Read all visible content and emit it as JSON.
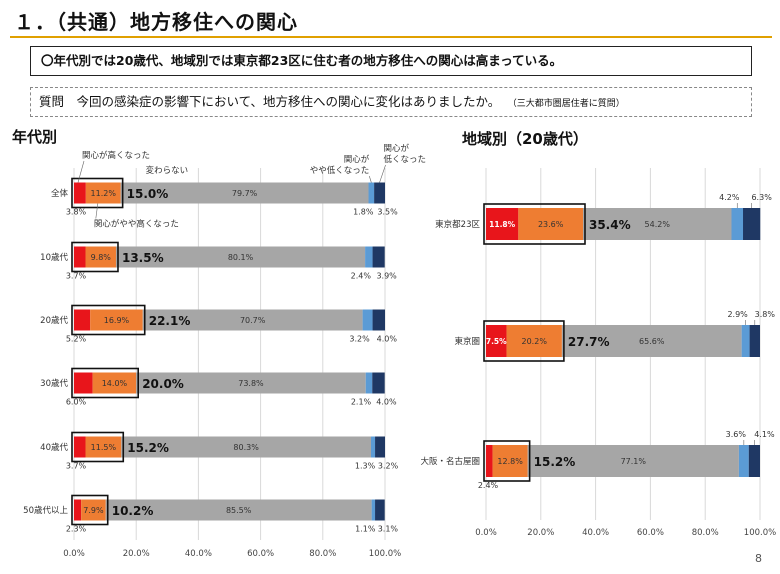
{
  "title": "１．（共通）地方移住への関心",
  "headline": "〇年代別では20歳代、地域別では東京都23区に住む者の地方移住への関心は高まっている。",
  "question": {
    "text": "質問　今回の感染症の影響下において、地方移住への関心に変化はありましたか。",
    "note": "（三大都市圏居住者に質問）"
  },
  "page_number": "8",
  "colors": {
    "high": "#e8151b",
    "somewhat_high": "#ee7d32",
    "unchanged": "#a6a6a6",
    "somewhat_low": "#5b9bd5",
    "low": "#1f3864"
  },
  "chart_data": [
    {
      "type": "bar",
      "orientation": "horizontal",
      "stacked": true,
      "title": "年代別",
      "categories": [
        "全体",
        "10歳代",
        "20歳代",
        "30歳代",
        "40歳代",
        "50歳代以上"
      ],
      "series": [
        {
          "name": "関心が高くなった",
          "values": [
            3.8,
            3.7,
            5.2,
            6.0,
            3.7,
            2.3
          ]
        },
        {
          "name": "関心がやや高くなった",
          "values": [
            11.2,
            9.8,
            16.9,
            14.0,
            11.5,
            7.9
          ]
        },
        {
          "name": "変わらない",
          "values": [
            79.7,
            80.1,
            70.7,
            73.8,
            80.3,
            85.5
          ]
        },
        {
          "name": "関心がやや低くなった",
          "values": [
            1.8,
            2.4,
            3.2,
            2.1,
            1.3,
            1.1
          ]
        },
        {
          "name": "関心が低くなった",
          "values": [
            3.5,
            3.9,
            4.0,
            4.0,
            3.2,
            3.1
          ]
        }
      ],
      "combined_labels": [
        "15.0%",
        "13.5%",
        "22.1%",
        "20.0%",
        "15.2%",
        "10.2%"
      ],
      "label_texts": {
        "high": [
          "3.8%",
          "3.7%",
          "5.2%",
          "6.0%",
          "3.7%",
          "2.3%"
        ],
        "somewhat_high": [
          "11.2%",
          "9.8%",
          "16.9%",
          "14.0%",
          "11.5%",
          "7.9%"
        ],
        "unchanged": [
          "79.7%",
          "80.1%",
          "70.7%",
          "73.8%",
          "80.3%",
          "85.5%"
        ],
        "somewhat_low": [
          "1.8%",
          "2.4%",
          "3.2%",
          "2.1%",
          "1.3%",
          "1.1%"
        ],
        "low": [
          "3.5%",
          "3.9%",
          "4.0%",
          "4.0%",
          "3.2%",
          "3.1%"
        ]
      },
      "series_labels": {
        "high": "関心が高くなった",
        "somewhat_high": "関心がやや高くなった",
        "unchanged": "変わらない",
        "somewhat_low_line1": "関心が",
        "somewhat_low_line2": "やや低くなった",
        "low_line1": "関心が",
        "low_line2": "低くなった"
      },
      "xlim": [
        0,
        100
      ],
      "xticks": [
        "0.0%",
        "20.0%",
        "40.0%",
        "60.0%",
        "80.0%",
        "100.0%"
      ]
    },
    {
      "type": "bar",
      "orientation": "horizontal",
      "stacked": true,
      "title": "地域別（20歳代）",
      "categories": [
        "東京都23区",
        "東京圏",
        "大阪・名古屋圏"
      ],
      "series": [
        {
          "name": "関心が高くなった",
          "values": [
            11.8,
            7.5,
            2.4
          ]
        },
        {
          "name": "関心がやや高くなった",
          "values": [
            23.6,
            20.2,
            12.8
          ]
        },
        {
          "name": "変わらない",
          "values": [
            54.2,
            65.6,
            77.1
          ]
        },
        {
          "name": "関心がやや低くなった",
          "values": [
            4.2,
            2.9,
            3.6
          ]
        },
        {
          "name": "関心が低くなった",
          "values": [
            6.3,
            3.8,
            4.1
          ]
        }
      ],
      "combined_labels": [
        "35.4%",
        "27.7%",
        "15.2%"
      ],
      "label_texts": {
        "high": [
          "11.8%",
          "7.5%",
          "2.4%"
        ],
        "somewhat_high": [
          "23.6%",
          "20.2%",
          "12.8%"
        ],
        "unchanged": [
          "54.2%",
          "65.6%",
          "77.1%"
        ],
        "somewhat_low": [
          "4.2%",
          "2.9%",
          "3.6%"
        ],
        "low": [
          "6.3%",
          "3.8%",
          "4.1%"
        ]
      },
      "xlim": [
        0,
        100
      ],
      "xticks": [
        "0.0%",
        "20.0%",
        "40.0%",
        "60.0%",
        "80.0%",
        "100.0%"
      ]
    }
  ]
}
